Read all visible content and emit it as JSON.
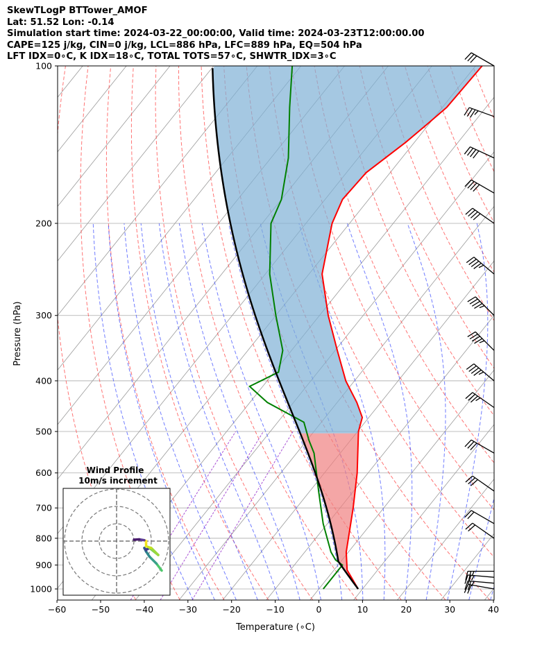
{
  "header": {
    "line1": "SkewTLogP BTTower_AMOF",
    "line2": "Lat: 51.52   Lon: -0.14",
    "line3": "Simulation start time: 2024-03-22_00:00:00, Valid time: 2024-03-23T12:00:00.00",
    "line4": "CAPE=125 j/kg, CIN=0 j/kg, LCL=886 hPa, LFC=889 hPa, EQ=504 hPa",
    "line5": "LFT IDX=0∘C, K IDX=18∘C, TOTAL TOTS=57∘C, SHWTR_IDX=3∘C"
  },
  "colors": {
    "temperature": "#ff0000",
    "dewpoint": "#008000",
    "parcel": "#000000",
    "cape_fill": "#7fb1d6",
    "cin_fill": "#f08080",
    "dry_adiabat": "#ff4444",
    "moist_adiabat": "#3344ff",
    "mixing_ratio": "#9933cc",
    "isotherm": "#999999",
    "isobar": "#aaaaaa"
  },
  "chart_data": {
    "type": "skew-t log-p",
    "xlabel": "Temperature (∘C)",
    "ylabel": "Pressure (hPa)",
    "xlim": [
      -60,
      40
    ],
    "ylim": [
      1050,
      100
    ],
    "x_ticks": [
      -60,
      -50,
      -40,
      -30,
      -20,
      -10,
      0,
      10,
      20,
      30,
      40
    ],
    "x_tick_labels": [
      "−60",
      "−50",
      "−40",
      "−30",
      "−20",
      "−10",
      "0",
      "10",
      "20",
      "30",
      "40"
    ],
    "y_ticks": [
      1000,
      900,
      800,
      700,
      600,
      500,
      400,
      300,
      200,
      100
    ],
    "y_tick_labels": [
      "1000",
      "900",
      "800",
      "700",
      "600",
      "500",
      "400",
      "300",
      "200",
      "100"
    ],
    "grid": true,
    "temperature": [
      {
        "p": 1000,
        "t": 9.0
      },
      {
        "p": 920,
        "t": 3.0
      },
      {
        "p": 850,
        "t": -0.5
      },
      {
        "p": 700,
        "t": -7.0
      },
      {
        "p": 600,
        "t": -12.5
      },
      {
        "p": 500,
        "t": -19.8
      },
      {
        "p": 470,
        "t": -21.5
      },
      {
        "p": 440,
        "t": -25.5
      },
      {
        "p": 400,
        "t": -32.0
      },
      {
        "p": 350,
        "t": -39.5
      },
      {
        "p": 300,
        "t": -48.0
      },
      {
        "p": 250,
        "t": -57.0
      },
      {
        "p": 200,
        "t": -64.0
      },
      {
        "p": 180,
        "t": -66.0
      },
      {
        "p": 160,
        "t": -65.5
      },
      {
        "p": 140,
        "t": -62.0
      },
      {
        "p": 130,
        "t": -60.5
      },
      {
        "p": 120,
        "t": -59.0
      },
      {
        "p": 100,
        "t": -58.5
      }
    ],
    "dewpoint": [
      {
        "p": 1000,
        "t": 1.0
      },
      {
        "p": 950,
        "t": 1.0
      },
      {
        "p": 900,
        "t": 1.0
      },
      {
        "p": 880,
        "t": -1.5
      },
      {
        "p": 850,
        "t": -4.0
      },
      {
        "p": 750,
        "t": -11.0
      },
      {
        "p": 650,
        "t": -18.0
      },
      {
        "p": 550,
        "t": -26.0
      },
      {
        "p": 520,
        "t": -29.5
      },
      {
        "p": 480,
        "t": -34.0
      },
      {
        "p": 440,
        "t": -46.0
      },
      {
        "p": 410,
        "t": -53.0
      },
      {
        "p": 385,
        "t": -49.0
      },
      {
        "p": 350,
        "t": -52.0
      },
      {
        "p": 300,
        "t": -60.0
      },
      {
        "p": 250,
        "t": -69.0
      },
      {
        "p": 200,
        "t": -78.0
      },
      {
        "p": 180,
        "t": -80.0
      },
      {
        "p": 150,
        "t": -86.0
      },
      {
        "p": 120,
        "t": -95.0
      },
      {
        "p": 100,
        "t": -102.0
      }
    ],
    "parcel_profile": {
      "start_temp_c": 9.0,
      "start_pressure_hpa": 1000,
      "lcl_pressure_hpa": 886,
      "lfc_pressure_hpa": 889,
      "el_pressure_hpa": 504
    },
    "wind_barbs": [
      {
        "p": 1000,
        "speed_kt": 20,
        "dir_deg": 280
      },
      {
        "p": 975,
        "speed_kt": 25,
        "dir_deg": 275
      },
      {
        "p": 950,
        "speed_kt": 25,
        "dir_deg": 275
      },
      {
        "p": 925,
        "speed_kt": 25,
        "dir_deg": 270
      },
      {
        "p": 800,
        "speed_kt": 20,
        "dir_deg": 305
      },
      {
        "p": 750,
        "speed_kt": 20,
        "dir_deg": 300
      },
      {
        "p": 650,
        "speed_kt": 30,
        "dir_deg": 305
      },
      {
        "p": 550,
        "speed_kt": 30,
        "dir_deg": 300
      },
      {
        "p": 450,
        "speed_kt": 35,
        "dir_deg": 305
      },
      {
        "p": 400,
        "speed_kt": 45,
        "dir_deg": 310
      },
      {
        "p": 350,
        "speed_kt": 45,
        "dir_deg": 315
      },
      {
        "p": 300,
        "speed_kt": 45,
        "dir_deg": 315
      },
      {
        "p": 250,
        "speed_kt": 45,
        "dir_deg": 310
      },
      {
        "p": 200,
        "speed_kt": 40,
        "dir_deg": 305
      },
      {
        "p": 175,
        "speed_kt": 40,
        "dir_deg": 300
      },
      {
        "p": 150,
        "speed_kt": 40,
        "dir_deg": 295
      },
      {
        "p": 125,
        "speed_kt": 35,
        "dir_deg": 290
      },
      {
        "p": 100,
        "speed_kt": 30,
        "dir_deg": 300
      }
    ],
    "hodograph": {
      "title_line1": "Wind Profile",
      "title_line2": "10m/s increment",
      "rings": 3,
      "points": [
        {
          "u": 26,
          "v": -17,
          "c": "#4ec86b"
        },
        {
          "u": 23,
          "v": -13,
          "c": "#3aa08a"
        },
        {
          "u": 19,
          "v": -9,
          "c": "#2f8a8c"
        },
        {
          "u": 17,
          "v": -6,
          "c": "#2d6f8e"
        },
        {
          "u": 16,
          "v": -4,
          "c": "#35578c"
        },
        {
          "u": 17,
          "v": -5,
          "c": "#463a8a"
        },
        {
          "u": 19,
          "v": -4,
          "c": "#77cc55"
        },
        {
          "u": 24,
          "v": -8,
          "c": "#9bd93c"
        },
        {
          "u": 20,
          "v": -4,
          "c": "#c7e020"
        },
        {
          "u": 17,
          "v": -3,
          "c": "#e8e419"
        },
        {
          "u": 17,
          "v": -1,
          "c": "#f5e21f"
        },
        {
          "u": 17,
          "v": 0,
          "c": "#fde725"
        },
        {
          "u": 16,
          "v": 0.5,
          "c": "#5c3c96"
        },
        {
          "u": 13,
          "v": 1.0,
          "c": "#481a6c"
        },
        {
          "u": 10,
          "v": 0.8,
          "c": "#440154"
        }
      ]
    }
  }
}
